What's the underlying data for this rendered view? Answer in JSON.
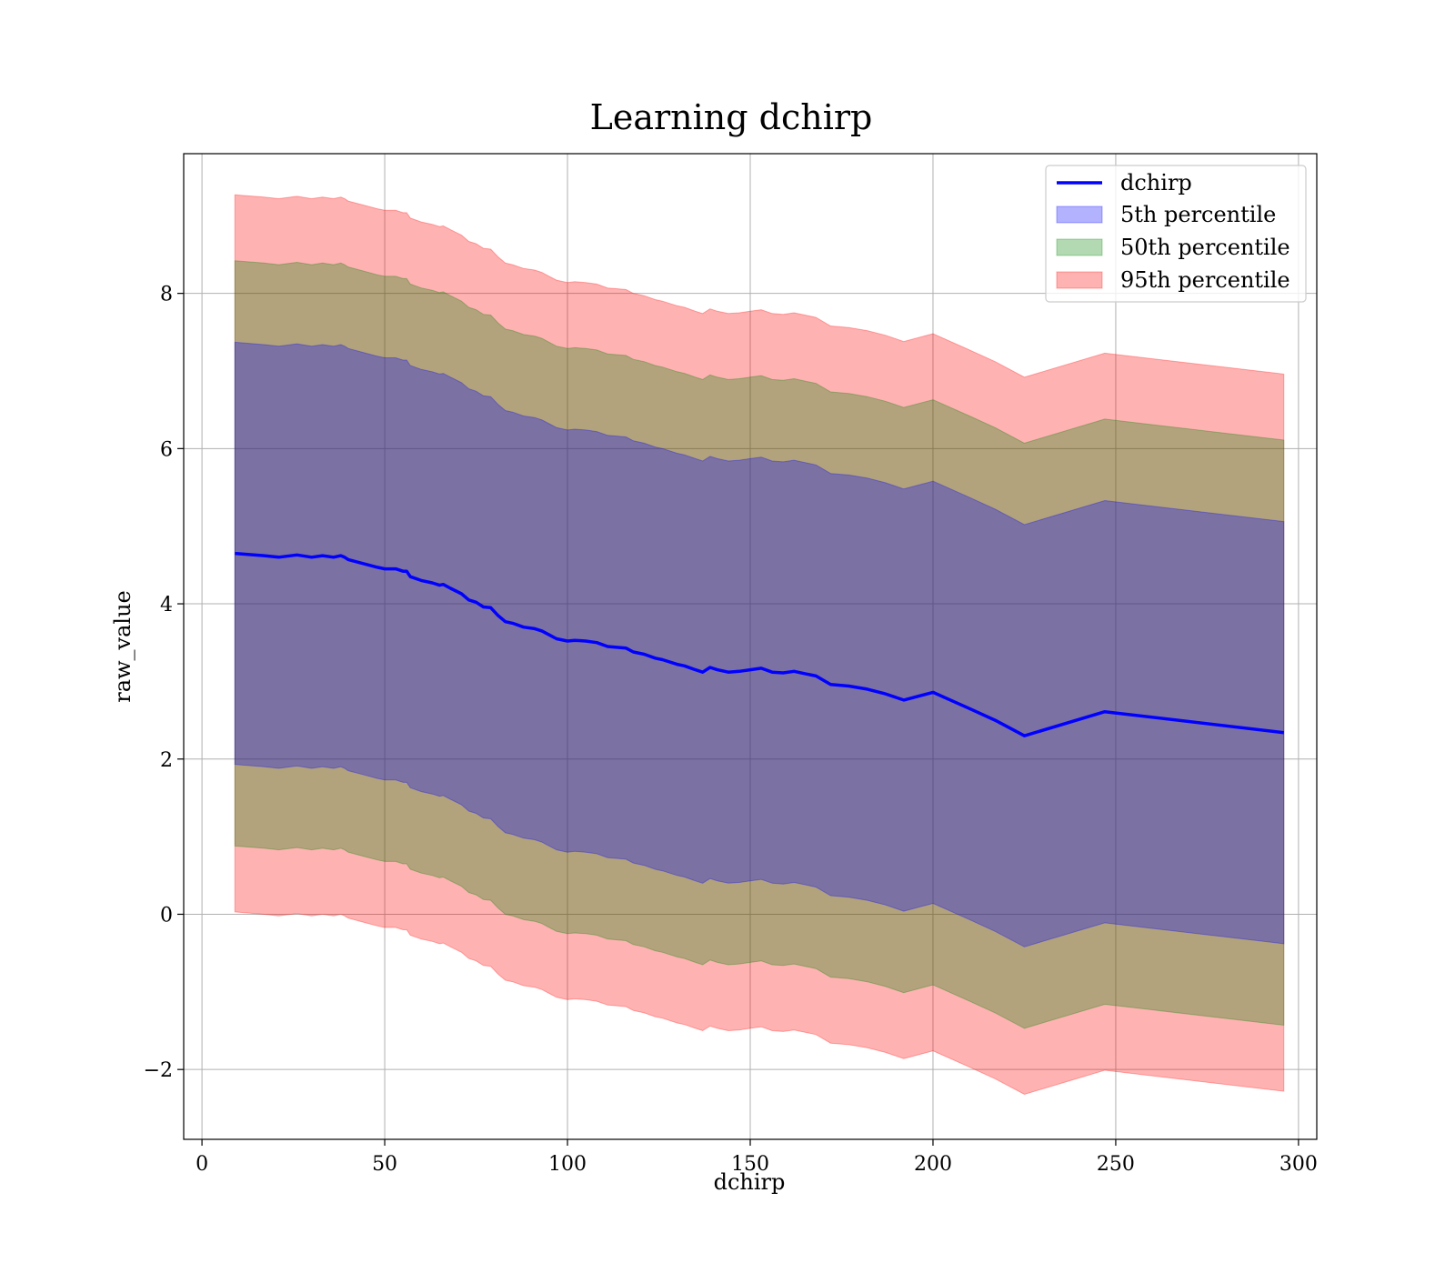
{
  "chart_data": {
    "type": "line",
    "title": "Learning dchirp",
    "xlabel": "dchirp",
    "ylabel": "raw_value",
    "xlim": [
      -5,
      305
    ],
    "ylim": [
      -2.9,
      9.8
    ],
    "xticks": [
      0,
      50,
      100,
      150,
      200,
      250,
      300
    ],
    "yticks": [
      -2,
      0,
      2,
      4,
      6,
      8
    ],
    "xtick_labels": [
      "0",
      "50",
      "100",
      "150",
      "200",
      "250",
      "300"
    ],
    "ytick_labels": [
      "−2",
      "0",
      "2",
      "4",
      "6",
      "8"
    ],
    "grid": true,
    "legend_position": "top-right",
    "x": [
      9,
      17,
      21,
      26,
      30,
      33,
      36,
      38,
      39,
      40,
      44,
      48,
      50,
      53,
      55,
      56,
      57,
      60,
      63,
      65,
      66,
      68,
      71,
      73,
      75,
      77,
      79,
      81,
      83,
      85,
      88,
      91,
      93,
      95,
      97,
      100,
      102,
      105,
      108,
      111,
      116,
      118,
      121,
      124,
      126,
      130,
      132,
      135,
      137,
      139,
      141,
      144,
      147,
      150,
      153,
      156,
      159,
      162,
      165,
      168,
      172,
      177,
      182,
      187,
      192,
      200,
      210,
      217,
      225,
      247,
      296
    ],
    "series": [
      {
        "name": "dchirp",
        "type": "line",
        "color": "#0000ff",
        "values": [
          4.65,
          4.62,
          4.6,
          4.63,
          4.6,
          4.62,
          4.6,
          4.62,
          4.6,
          4.57,
          4.52,
          4.47,
          4.45,
          4.45,
          4.42,
          4.42,
          4.35,
          4.3,
          4.27,
          4.24,
          4.25,
          4.2,
          4.13,
          4.05,
          4.02,
          3.96,
          3.95,
          3.85,
          3.77,
          3.75,
          3.7,
          3.68,
          3.65,
          3.6,
          3.55,
          3.52,
          3.53,
          3.52,
          3.5,
          3.45,
          3.43,
          3.38,
          3.35,
          3.3,
          3.28,
          3.22,
          3.2,
          3.15,
          3.12,
          3.18,
          3.15,
          3.12,
          3.13,
          3.15,
          3.17,
          3.12,
          3.11,
          3.13,
          3.1,
          3.07,
          2.96,
          2.94,
          2.9,
          2.84,
          2.76,
          2.86,
          2.65,
          2.5,
          2.3,
          2.61,
          2.34
        ]
      },
      {
        "name": "5th percentile",
        "type": "band",
        "color": "#0000ff",
        "opacity": 0.3,
        "offset": 2.72
      },
      {
        "name": "50th percentile",
        "type": "band",
        "color": "#008000",
        "opacity": 0.3,
        "offset": 3.77
      },
      {
        "name": "95th percentile",
        "type": "band",
        "color": "#ff0000",
        "opacity": 0.3,
        "offset": 4.62
      }
    ]
  }
}
